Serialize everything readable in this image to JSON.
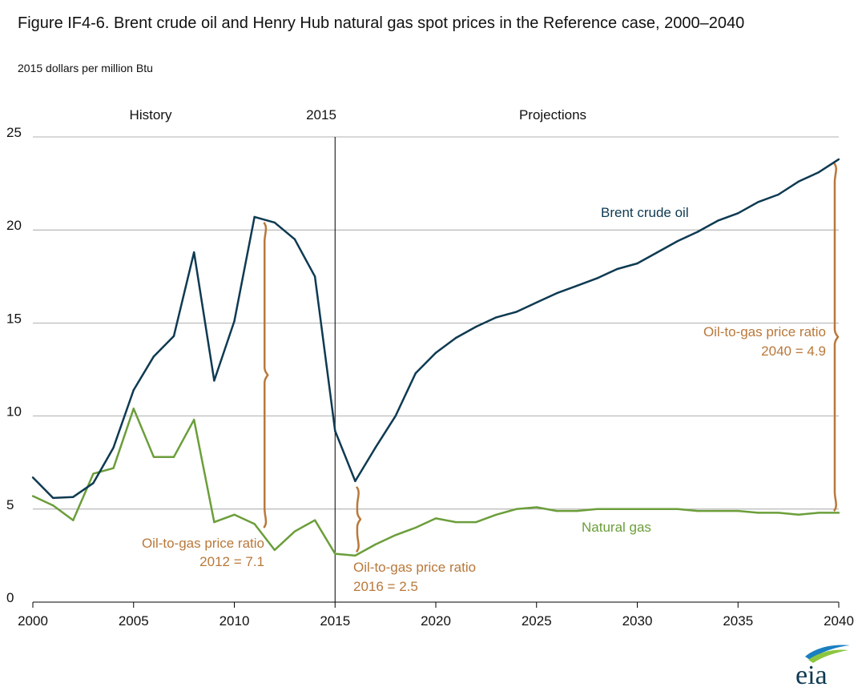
{
  "title": "Figure IF4-6. Brent crude oil and Henry Hub natural gas spot prices in the Reference case, 2000–2040",
  "subtitle": "2015 dollars per million Btu",
  "logo_text": "eia",
  "colors": {
    "oil": "#0e3a52",
    "gas": "#6b9e3a",
    "ratio": "#b9783a",
    "grid": "#999999",
    "text": "#111111"
  },
  "chart_data": {
    "type": "line",
    "title": "Figure IF4-6. Brent crude oil and Henry Hub natural gas spot prices in the Reference case, 2000–2040",
    "ylabel": "2015 dollars per million Btu",
    "xlim": [
      2000,
      2040
    ],
    "ylim": [
      0,
      25
    ],
    "grid": true,
    "x_ticks": [
      "2000",
      "2005",
      "2010",
      "2015",
      "2020",
      "2025",
      "2030",
      "2035",
      "2040"
    ],
    "y_ticks": [
      "0",
      "5",
      "10",
      "15",
      "20",
      "25"
    ],
    "x": [
      2000,
      2001,
      2002,
      2003,
      2004,
      2005,
      2006,
      2007,
      2008,
      2009,
      2010,
      2011,
      2012,
      2013,
      2014,
      2015,
      2016,
      2017,
      2018,
      2019,
      2020,
      2021,
      2022,
      2023,
      2024,
      2025,
      2026,
      2027,
      2028,
      2029,
      2030,
      2031,
      2032,
      2033,
      2034,
      2035,
      2036,
      2037,
      2038,
      2039,
      2040
    ],
    "series": [
      {
        "name": "Brent crude oil",
        "values": [
          6.7,
          5.6,
          5.65,
          6.4,
          8.3,
          11.4,
          13.2,
          14.3,
          18.8,
          11.9,
          15.1,
          20.7,
          20.4,
          19.5,
          17.5,
          9.2,
          6.5,
          8.3,
          10.0,
          12.3,
          13.4,
          14.2,
          14.8,
          15.3,
          15.6,
          16.1,
          16.6,
          17.0,
          17.4,
          17.9,
          18.2,
          18.8,
          19.4,
          19.9,
          20.5,
          20.9,
          21.5,
          21.9,
          22.6,
          23.1,
          23.8
        ]
      },
      {
        "name": "Natural gas",
        "values": [
          5.7,
          5.2,
          4.4,
          6.9,
          7.2,
          10.4,
          7.8,
          7.8,
          9.8,
          4.3,
          4.7,
          4.2,
          2.8,
          3.8,
          4.4,
          2.6,
          2.5,
          3.1,
          3.6,
          4.0,
          4.5,
          4.3,
          4.3,
          4.7,
          5.0,
          5.1,
          4.9,
          4.9,
          5.0,
          5.0,
          5.0,
          5.0,
          5.0,
          4.9,
          4.9,
          4.9,
          4.8,
          4.8,
          4.7,
          4.8,
          4.8
        ]
      }
    ],
    "period_labels": {
      "history": "History",
      "divider": "2015",
      "projections": "Projections"
    },
    "divider_x": 2015,
    "ratios": [
      {
        "label": "Oil-to-gas price ratio",
        "value": "2012 = 7.1",
        "year": 2011.5,
        "from": 4.0,
        "to": 20.4
      },
      {
        "label": "Oil-to-gas price ratio",
        "value": "2016 = 2.5",
        "year": 2016.1,
        "from": 2.7,
        "to": 6.2
      },
      {
        "label": "Oil-to-gas price ratio",
        "value": "2040 = 4.9",
        "year": 2039.8,
        "from": 4.9,
        "to": 23.6
      }
    ]
  }
}
